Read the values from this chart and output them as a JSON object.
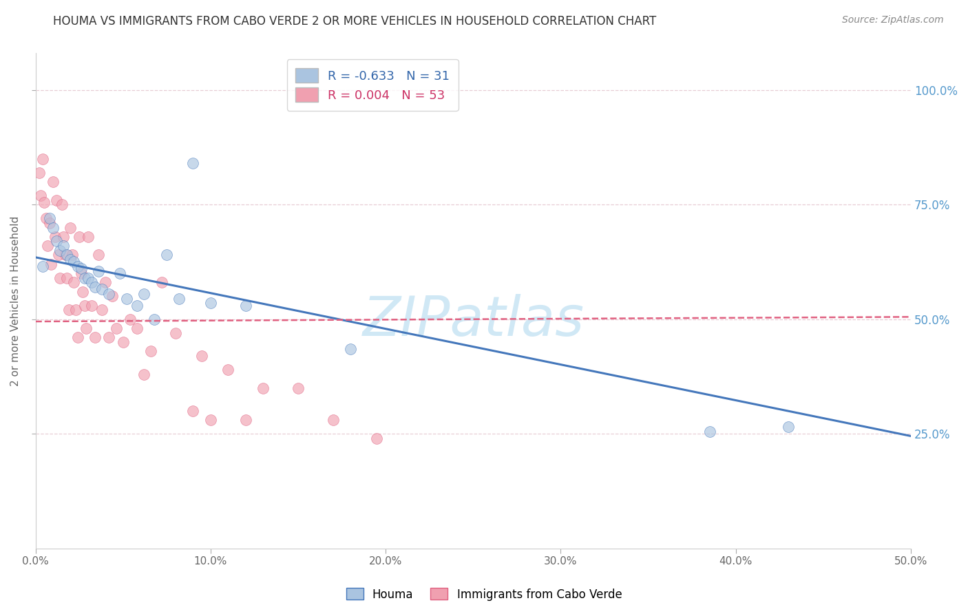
{
  "title": "HOUMA VS IMMIGRANTS FROM CABO VERDE 2 OR MORE VEHICLES IN HOUSEHOLD CORRELATION CHART",
  "source": "Source: ZipAtlas.com",
  "ylabel": "2 or more Vehicles in Household",
  "x_tick_labels": [
    "0.0%",
    "10.0%",
    "20.0%",
    "30.0%",
    "40.0%",
    "50.0%"
  ],
  "x_tick_vals": [
    0.0,
    0.1,
    0.2,
    0.3,
    0.4,
    0.5
  ],
  "y_tick_labels": [
    "25.0%",
    "50.0%",
    "75.0%",
    "100.0%"
  ],
  "y_tick_vals": [
    0.25,
    0.5,
    0.75,
    1.0
  ],
  "xlim": [
    0.0,
    0.5
  ],
  "ylim": [
    0.0,
    1.08
  ],
  "blue_R": -0.633,
  "blue_N": 31,
  "pink_R": 0.004,
  "pink_N": 53,
  "legend_label_blue": "Houma",
  "legend_label_pink": "Immigrants from Cabo Verde",
  "background_color": "#ffffff",
  "blue_color": "#aac4e0",
  "blue_line_color": "#4477bb",
  "pink_color": "#f0a0b0",
  "pink_line_color": "#e06080",
  "watermark_color": "#d0e8f5",
  "blue_line_y0": 0.635,
  "blue_line_y1": 0.245,
  "pink_line_y0": 0.495,
  "pink_line_y1": 0.505,
  "blue_scatter_x": [
    0.004,
    0.008,
    0.01,
    0.012,
    0.014,
    0.016,
    0.018,
    0.02,
    0.022,
    0.024,
    0.026,
    0.028,
    0.03,
    0.032,
    0.034,
    0.036,
    0.038,
    0.042,
    0.048,
    0.052,
    0.058,
    0.062,
    0.068,
    0.075,
    0.082,
    0.09,
    0.1,
    0.12,
    0.18,
    0.385,
    0.43
  ],
  "blue_scatter_y": [
    0.615,
    0.72,
    0.7,
    0.67,
    0.65,
    0.66,
    0.64,
    0.63,
    0.625,
    0.615,
    0.61,
    0.59,
    0.59,
    0.58,
    0.57,
    0.605,
    0.565,
    0.555,
    0.6,
    0.545,
    0.53,
    0.555,
    0.5,
    0.64,
    0.545,
    0.84,
    0.535,
    0.53,
    0.435,
    0.255,
    0.265
  ],
  "pink_scatter_x": [
    0.002,
    0.003,
    0.004,
    0.005,
    0.006,
    0.007,
    0.008,
    0.009,
    0.01,
    0.011,
    0.012,
    0.013,
    0.014,
    0.015,
    0.016,
    0.017,
    0.018,
    0.019,
    0.02,
    0.021,
    0.022,
    0.023,
    0.024,
    0.025,
    0.026,
    0.027,
    0.028,
    0.029,
    0.03,
    0.032,
    0.034,
    0.036,
    0.038,
    0.04,
    0.042,
    0.044,
    0.046,
    0.05,
    0.054,
    0.058,
    0.062,
    0.066,
    0.072,
    0.08,
    0.09,
    0.095,
    0.1,
    0.11,
    0.12,
    0.13,
    0.15,
    0.17,
    0.195
  ],
  "pink_scatter_y": [
    0.82,
    0.77,
    0.85,
    0.755,
    0.72,
    0.66,
    0.71,
    0.62,
    0.8,
    0.68,
    0.76,
    0.64,
    0.59,
    0.75,
    0.68,
    0.64,
    0.59,
    0.52,
    0.7,
    0.64,
    0.58,
    0.52,
    0.46,
    0.68,
    0.6,
    0.56,
    0.53,
    0.48,
    0.68,
    0.53,
    0.46,
    0.64,
    0.52,
    0.58,
    0.46,
    0.55,
    0.48,
    0.45,
    0.5,
    0.48,
    0.38,
    0.43,
    0.58,
    0.47,
    0.3,
    0.42,
    0.28,
    0.39,
    0.28,
    0.35,
    0.35,
    0.28,
    0.24
  ]
}
